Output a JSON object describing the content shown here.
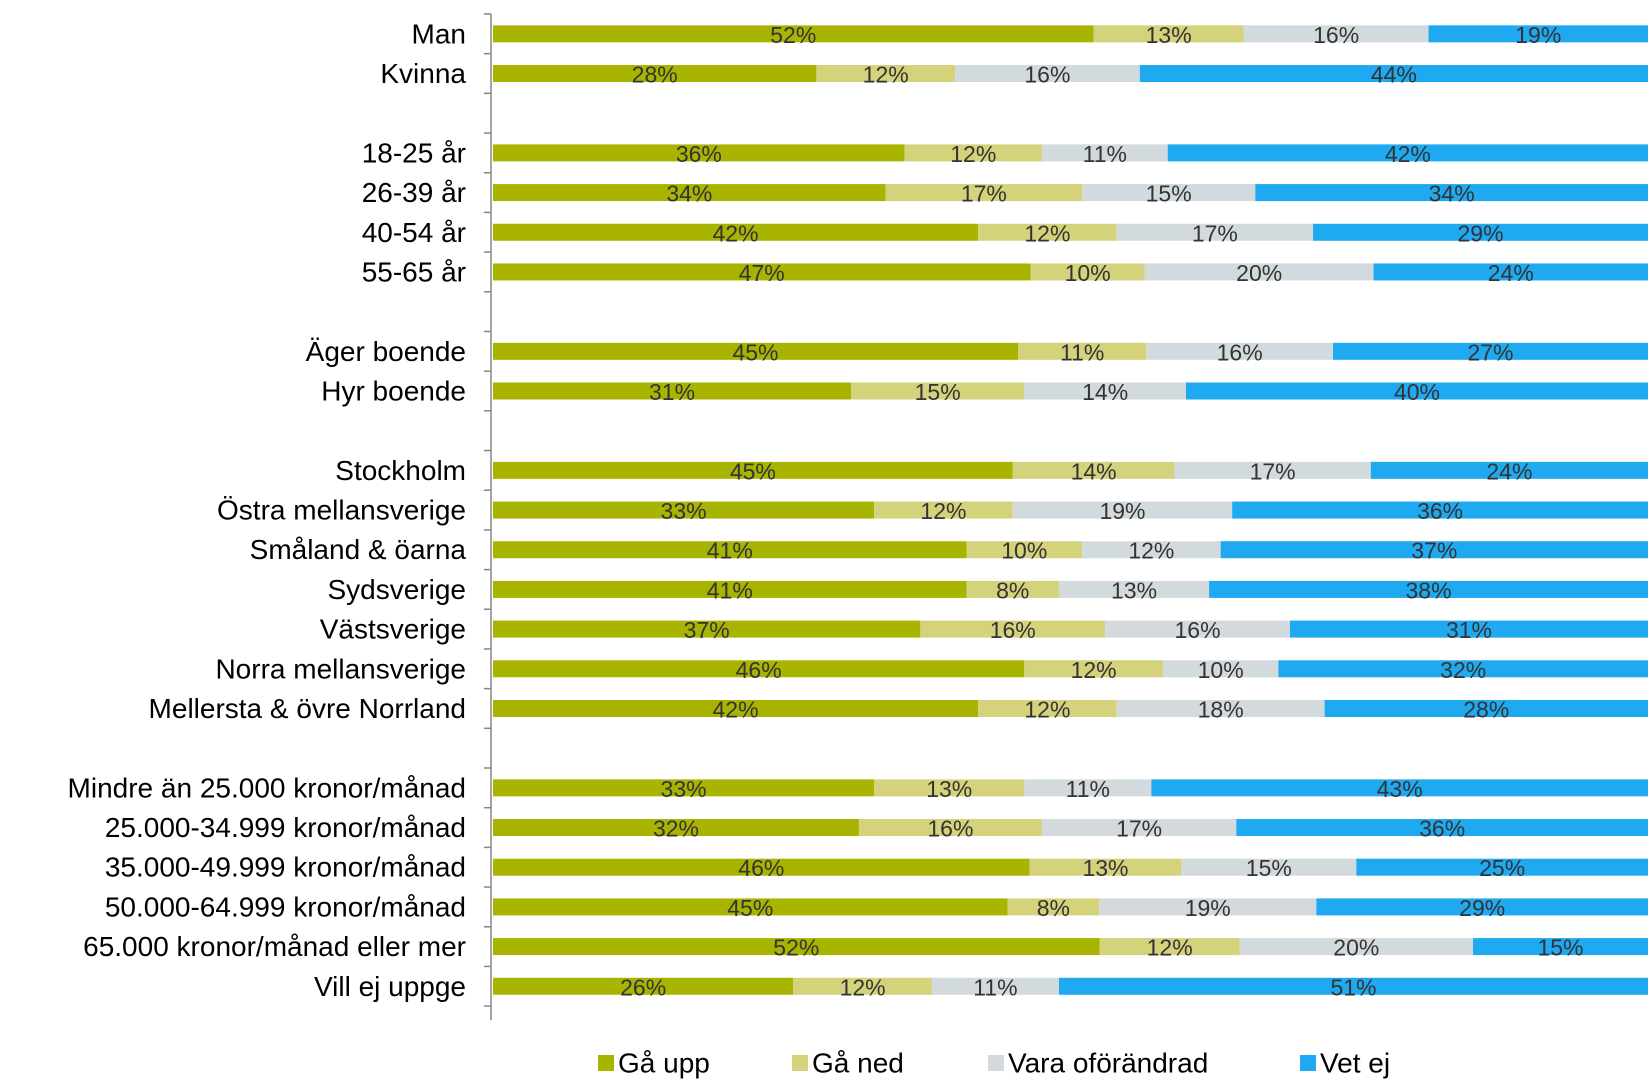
{
  "chart_data": {
    "type": "bar",
    "orientation": "horizontal",
    "stacked": "percent",
    "categories": [
      "Man",
      "Kvinna",
      "",
      "18-25 år",
      "26-39 år",
      "40-54 år",
      "55-65 år",
      "",
      "Äger boende",
      "Hyr boende",
      "",
      "Stockholm",
      "Östra mellansverige",
      "Småland & öarna",
      "Sydsverige",
      "Västsverige",
      "Norra mellansverige",
      "Mellersta & övre Norrland",
      "",
      "Mindre än 25.000 kronor/månad",
      "25.000-34.999 kronor/månad",
      "35.000-49.999 kronor/månad",
      "50.000-64.999 kronor/månad",
      "65.000 kronor/månad eller mer",
      "Vill ej uppge"
    ],
    "series": [
      {
        "name": "Gå upp",
        "color": "#A8B400",
        "values": [
          52,
          28,
          null,
          36,
          34,
          42,
          47,
          null,
          45,
          31,
          null,
          45,
          33,
          41,
          41,
          37,
          46,
          42,
          null,
          33,
          32,
          46,
          45,
          52,
          26
        ],
        "labels": [
          "52%",
          "28%",
          "",
          "36%",
          "34%",
          "42%",
          "47%",
          "",
          "45%",
          "31%",
          "",
          "45%",
          "33%",
          "41%",
          "41%",
          "37%",
          "46%",
          "42%",
          "",
          "33%",
          "32%",
          "46%",
          "45%",
          "52%",
          "26%"
        ]
      },
      {
        "name": "Gå ned",
        "color": "#D4D27A",
        "values": [
          13,
          12,
          null,
          12,
          17,
          12,
          10,
          null,
          11,
          15,
          null,
          14,
          12,
          10,
          8,
          16,
          12,
          12,
          null,
          13,
          16,
          13,
          8,
          12,
          12
        ],
        "labels": [
          "13%",
          "12%",
          "",
          "12%",
          "17%",
          "12%",
          "10%",
          "",
          "11%",
          "15%",
          "",
          "14%",
          "12%",
          "10%",
          "8%",
          "16%",
          "12%",
          "12%",
          "",
          "13%",
          "16%",
          "13%",
          "8%",
          "12%",
          "12%"
        ]
      },
      {
        "name": "Vara oförändrad",
        "color": "#D3DADE",
        "values": [
          16,
          16,
          null,
          11,
          15,
          17,
          20,
          null,
          16,
          14,
          null,
          17,
          19,
          12,
          13,
          16,
          10,
          18,
          null,
          11,
          17,
          15,
          19,
          20,
          11
        ],
        "labels": [
          "16%",
          "16%",
          "",
          "11%",
          "15%",
          "17%",
          "20%",
          "",
          "16%",
          "14%",
          "",
          "17%",
          "19%",
          "12%",
          "13%",
          "16%",
          "10%",
          "18%",
          "",
          "11%",
          "17%",
          "15%",
          "19%",
          "20%",
          "11%"
        ]
      },
      {
        "name": "Vet ej",
        "color": "#1EA9F0",
        "values": [
          19,
          44,
          null,
          42,
          34,
          29,
          24,
          null,
          27,
          40,
          null,
          24,
          36,
          37,
          38,
          31,
          32,
          28,
          null,
          43,
          36,
          25,
          29,
          15,
          51
        ],
        "labels": [
          "19%",
          "44%",
          "",
          "42%",
          "34%",
          "29%",
          "24%",
          "",
          "27%",
          "40%",
          "",
          "24%",
          "36%",
          "37%",
          "38%",
          "31%",
          "32%",
          "28%",
          "",
          "43%",
          "36%",
          "25%",
          "29%",
          "15%",
          "51%"
        ]
      }
    ],
    "xlim": [
      0,
      100
    ],
    "legend": {
      "position": "bottom"
    },
    "grid": false
  }
}
